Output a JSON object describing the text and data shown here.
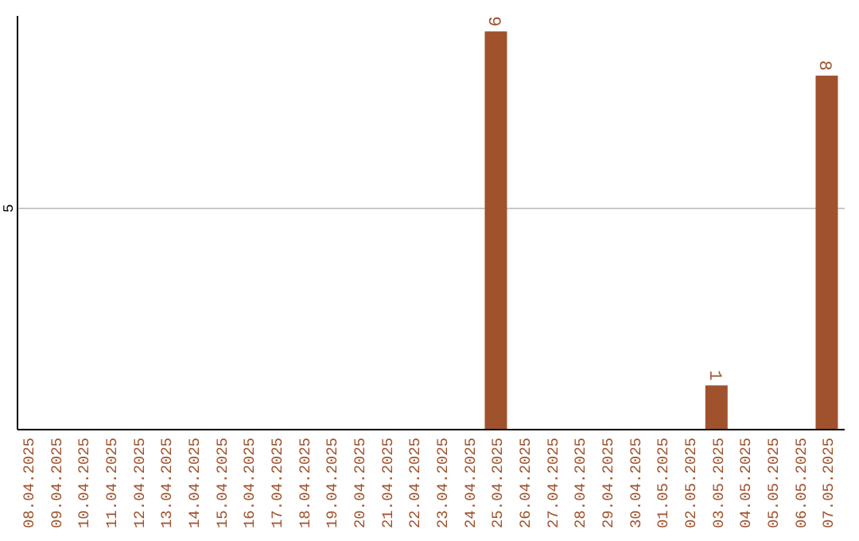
{
  "chart_data": {
    "type": "bar",
    "categories": [
      "08.04.2025",
      "09.04.2025",
      "10.04.2025",
      "11.04.2025",
      "12.04.2025",
      "13.04.2025",
      "14.04.2025",
      "15.04.2025",
      "16.04.2025",
      "17.04.2025",
      "18.04.2025",
      "19.04.2025",
      "20.04.2025",
      "21.04.2025",
      "22.04.2025",
      "23.04.2025",
      "24.04.2025",
      "25.04.2025",
      "26.04.2025",
      "27.04.2025",
      "28.04.2025",
      "29.04.2025",
      "30.04.2025",
      "01.05.2025",
      "02.05.2025",
      "03.05.2025",
      "04.05.2025",
      "05.05.2025",
      "06.05.2025",
      "07.05.2025"
    ],
    "values": [
      null,
      null,
      null,
      null,
      null,
      null,
      null,
      null,
      null,
      null,
      null,
      null,
      null,
      null,
      null,
      null,
      null,
      9,
      null,
      null,
      null,
      null,
      null,
      null,
      null,
      1,
      null,
      null,
      null,
      8
    ],
    "data_labels": true,
    "color": "#a0522d",
    "ylim": [
      0,
      9.35
    ],
    "ref_lines": [
      {
        "axis": "y",
        "value": 5,
        "label": "5",
        "color": "#c8c8c8"
      }
    ]
  }
}
